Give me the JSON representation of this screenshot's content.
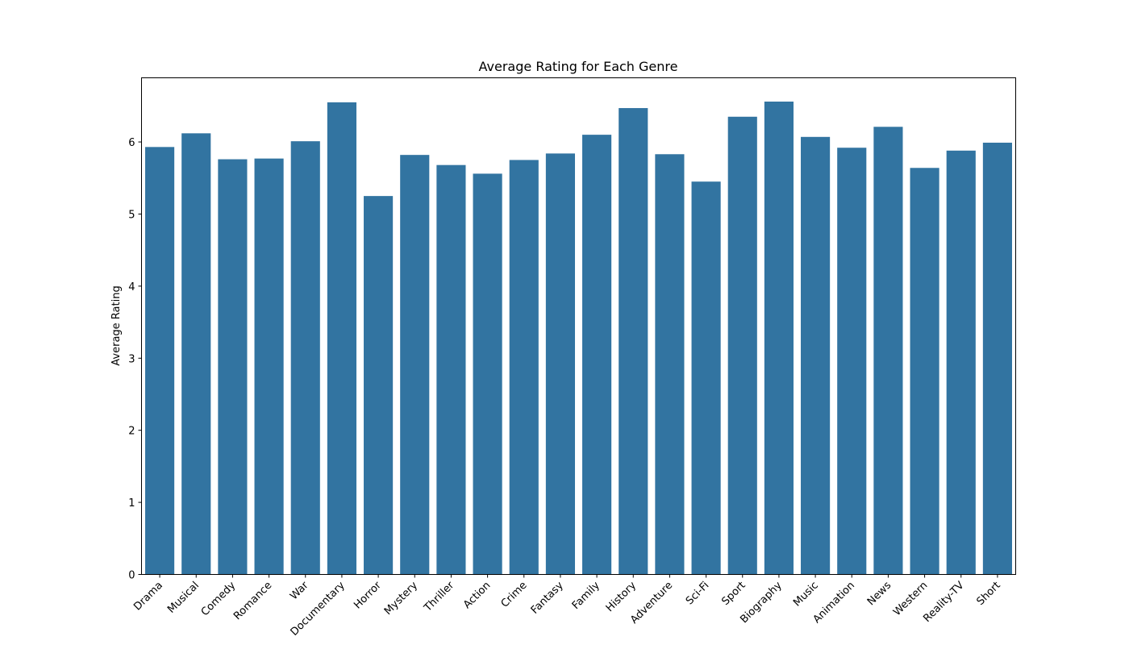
{
  "chart_data": {
    "type": "bar",
    "title": "Average Rating for Each Genre",
    "xlabel": "",
    "ylabel": "Average Rating",
    "ylim": [
      0,
      6.89
    ],
    "yticks": [
      0,
      1,
      2,
      3,
      4,
      5,
      6
    ],
    "grid": false,
    "bar_color": "#3274a1",
    "categories": [
      "Drama",
      "Musical",
      "Comedy",
      "Romance",
      "War",
      "Documentary",
      "Horror",
      "Mystery",
      "Thriller",
      "Action",
      "Crime",
      "Fantasy",
      "Family",
      "History",
      "Adventure",
      "Sci-Fi",
      "Sport",
      "Biography",
      "Music",
      "Animation",
      "News",
      "Western",
      "Reality-TV",
      "Short"
    ],
    "values": [
      5.93,
      6.12,
      5.76,
      5.77,
      6.01,
      6.55,
      5.25,
      5.82,
      5.68,
      5.56,
      5.75,
      5.84,
      6.1,
      6.47,
      5.83,
      5.45,
      6.35,
      6.56,
      6.07,
      5.92,
      6.21,
      5.64,
      5.88,
      5.99
    ]
  }
}
